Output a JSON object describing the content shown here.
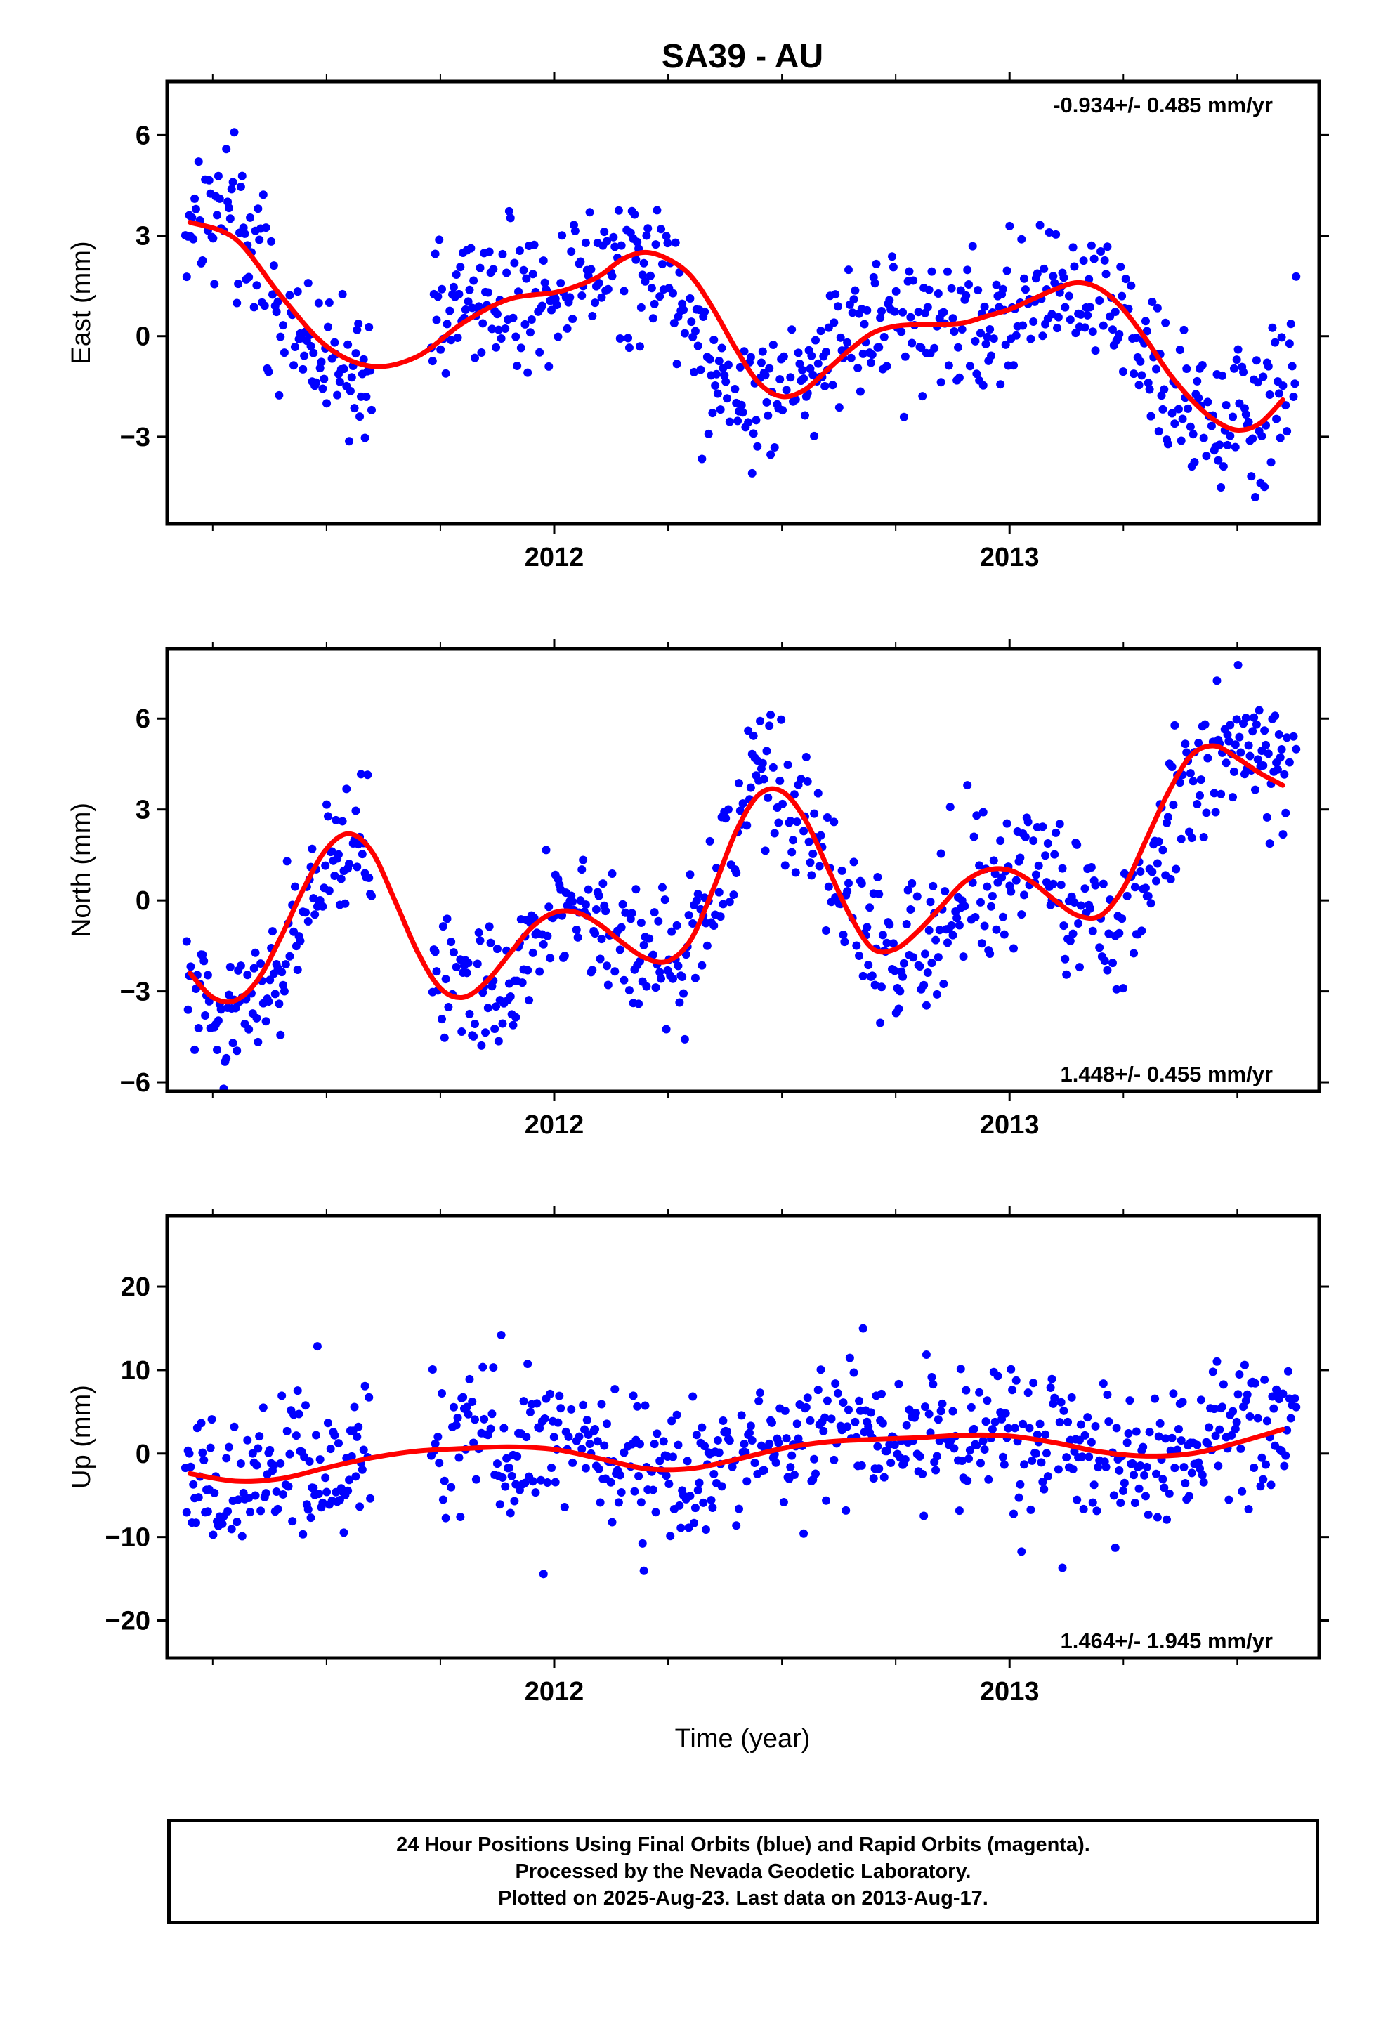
{
  "title": "SA39 - AU",
  "xlabel": "Time (year)",
  "footer": {
    "line1": "24 Hour Positions Using Final Orbits (blue) and Rapid Orbits (magenta).",
    "line2": "Processed by the Nevada Geodetic Laboratory.",
    "line3": "Plotted on 2025-Aug-23. Last data on 2013-Aug-17."
  },
  "colors": {
    "points": "#0000ff",
    "fit": "#ff0000",
    "axis": "#000000"
  },
  "chart_data": [
    {
      "type": "scatter",
      "id": "east",
      "ylabel": "East (mm)",
      "rate": "-0.934+/- 0.485 mm/yr",
      "rate_position": "top-right",
      "xlim": [
        2011.15,
        2013.68
      ],
      "ylim": [
        -5.6,
        7.6
      ],
      "xticks": [
        2012,
        2013
      ],
      "yticks": [
        -3,
        0,
        3,
        6
      ],
      "ytick_labels": [
        "−3",
        "0",
        "3",
        "6"
      ],
      "series": [
        {
          "kind": "daily positions (blue)",
          "x": [
            2011.2,
            2011.25,
            2011.3,
            2011.35,
            2011.4,
            2011.45,
            2011.5,
            2011.55,
            2011.6,
            2011.72,
            2011.78,
            2011.85,
            2011.9,
            2011.95,
            2012.0,
            2012.05,
            2012.1,
            2012.15,
            2012.2,
            2012.25,
            2012.3,
            2012.35,
            2012.4,
            2012.45,
            2012.5,
            2012.55,
            2012.6,
            2012.65,
            2012.7,
            2012.75,
            2012.8,
            2012.85,
            2012.9,
            2012.95,
            2013.0,
            2013.05,
            2013.1,
            2013.15,
            2013.2,
            2013.25,
            2013.3,
            2013.35,
            2013.4,
            2013.45,
            2013.5,
            2013.55,
            2013.6
          ],
          "y": [
            3.4,
            3.9,
            3.5,
            2.2,
            0.8,
            -0.4,
            -0.6,
            -1.5,
            -0.8,
            -0.3,
            1.4,
            1.2,
            1.3,
            1.0,
            1.6,
            2.3,
            1.9,
            2.6,
            2.0,
            1.8,
            0.2,
            -0.9,
            -1.6,
            -1.8,
            -1.5,
            -1.1,
            -0.3,
            0.2,
            0.4,
            0.5,
            0.4,
            0.2,
            0.6,
            0.3,
            0.8,
            0.9,
            1.3,
            1.6,
            1.5,
            0.6,
            -0.6,
            -1.8,
            -2.3,
            -2.7,
            -2.5,
            -2.4,
            -1.6
          ]
        },
        {
          "kind": "model fit (red)",
          "x": [
            2011.2,
            2011.3,
            2011.4,
            2011.5,
            2011.6,
            2011.7,
            2011.8,
            2011.9,
            2012.0,
            2012.05,
            2012.1,
            2012.15,
            2012.2,
            2012.25,
            2012.3,
            2012.35,
            2012.4,
            2012.45,
            2012.5,
            2012.55,
            2012.6,
            2012.65,
            2012.7,
            2012.75,
            2012.8,
            2012.85,
            2012.9,
            2012.95,
            2013.0,
            2013.05,
            2013.1,
            2013.15,
            2013.2,
            2013.25,
            2013.3,
            2013.35,
            2013.4,
            2013.45,
            2013.5,
            2013.55,
            2013.6
          ],
          "y": [
            3.4,
            2.9,
            1.2,
            -0.3,
            -0.9,
            -0.6,
            0.4,
            1.1,
            1.3,
            1.5,
            1.8,
            2.3,
            2.5,
            2.3,
            1.8,
            0.8,
            -0.4,
            -1.4,
            -1.8,
            -1.6,
            -1.0,
            -0.4,
            0.1,
            0.3,
            0.35,
            0.35,
            0.4,
            0.6,
            0.8,
            1.1,
            1.4,
            1.6,
            1.4,
            0.8,
            -0.1,
            -1.1,
            -1.9,
            -2.5,
            -2.8,
            -2.6,
            -1.9
          ]
        }
      ]
    },
    {
      "type": "scatter",
      "id": "north",
      "ylabel": "North (mm)",
      "rate": "1.448+/- 0.455 mm/yr",
      "rate_position": "bottom-right",
      "xlim": [
        2011.15,
        2013.68
      ],
      "ylim": [
        -6.3,
        8.3
      ],
      "xticks": [
        2012,
        2013
      ],
      "yticks": [
        -6,
        -3,
        0,
        3,
        6
      ],
      "ytick_labels": [
        "−6",
        "−3",
        "0",
        "3",
        "6"
      ],
      "series": [
        {
          "kind": "daily positions (blue)",
          "x": [
            2011.2,
            2011.25,
            2011.3,
            2011.35,
            2011.4,
            2011.45,
            2011.5,
            2011.55,
            2011.6,
            2011.72,
            2011.78,
            2011.85,
            2011.9,
            2011.95,
            2012.0,
            2012.05,
            2012.1,
            2012.15,
            2012.2,
            2012.25,
            2012.3,
            2012.35,
            2012.4,
            2012.45,
            2012.5,
            2012.55,
            2012.6,
            2012.65,
            2012.7,
            2012.75,
            2012.8,
            2012.85,
            2012.9,
            2012.95,
            2013.0,
            2013.05,
            2013.1,
            2013.15,
            2013.2,
            2013.25,
            2013.3,
            2013.35,
            2013.4,
            2013.45,
            2013.5,
            2013.55,
            2013.6
          ],
          "y": [
            -2.8,
            -3.4,
            -3.6,
            -3.1,
            -2.0,
            -0.4,
            1.0,
            1.8,
            1.7,
            -1.2,
            -2.6,
            -3.3,
            -2.8,
            -1.4,
            -0.6,
            -0.3,
            -0.8,
            -1.5,
            -2.0,
            -2.3,
            -1.6,
            0.4,
            2.6,
            3.9,
            3.6,
            2.6,
            0.6,
            -0.4,
            -1.4,
            -2.0,
            -1.4,
            -0.8,
            -0.2,
            0.4,
            0.7,
            1.0,
            0.5,
            -0.2,
            -0.6,
            -0.8,
            0.6,
            2.8,
            4.2,
            5.0,
            5.3,
            4.6,
            4.0
          ]
        },
        {
          "kind": "model fit (red)",
          "x": [
            2011.2,
            2011.25,
            2011.3,
            2011.35,
            2011.4,
            2011.45,
            2011.5,
            2011.55,
            2011.6,
            2011.65,
            2011.7,
            2011.75,
            2011.8,
            2011.85,
            2011.9,
            2011.95,
            2012.0,
            2012.05,
            2012.1,
            2012.15,
            2012.2,
            2012.25,
            2012.3,
            2012.35,
            2012.4,
            2012.45,
            2012.5,
            2012.55,
            2012.6,
            2012.65,
            2012.7,
            2012.75,
            2012.8,
            2012.85,
            2012.9,
            2012.95,
            2013.0,
            2013.05,
            2013.1,
            2013.15,
            2013.2,
            2013.25,
            2013.3,
            2013.35,
            2013.4,
            2013.45,
            2013.5,
            2013.55,
            2013.6
          ],
          "y": [
            -2.4,
            -3.2,
            -3.3,
            -2.6,
            -1.2,
            0.4,
            1.7,
            2.2,
            1.6,
            0.0,
            -1.7,
            -2.9,
            -3.2,
            -2.7,
            -1.8,
            -0.9,
            -0.4,
            -0.4,
            -0.8,
            -1.4,
            -1.9,
            -2.0,
            -1.3,
            0.4,
            2.3,
            3.5,
            3.6,
            2.7,
            1.1,
            -0.5,
            -1.6,
            -1.6,
            -1.0,
            -0.2,
            0.6,
            1.0,
            1.0,
            0.6,
            0.0,
            -0.5,
            -0.5,
            0.4,
            2.0,
            3.6,
            4.8,
            5.1,
            4.7,
            4.2,
            3.8
          ]
        }
      ]
    },
    {
      "type": "scatter",
      "id": "up",
      "ylabel": "Up (mm)",
      "rate": "1.464+/- 1.945 mm/yr",
      "rate_position": "bottom-right",
      "xlim": [
        2011.15,
        2013.68
      ],
      "ylim": [
        -24.5,
        28.5
      ],
      "xticks": [
        2012,
        2013
      ],
      "yticks": [
        -20,
        -10,
        0,
        10,
        20
      ],
      "ytick_labels": [
        "−20",
        "−10",
        "0",
        "10",
        "20"
      ],
      "series": [
        {
          "kind": "daily positions (blue)",
          "x": [
            2011.2,
            2011.25,
            2011.3,
            2011.35,
            2011.4,
            2011.45,
            2011.5,
            2011.55,
            2011.6,
            2011.72,
            2011.78,
            2011.85,
            2011.9,
            2011.95,
            2012.0,
            2012.05,
            2012.1,
            2012.15,
            2012.2,
            2012.25,
            2012.3,
            2012.35,
            2012.4,
            2012.45,
            2012.5,
            2012.55,
            2012.6,
            2012.65,
            2012.7,
            2012.75,
            2012.8,
            2012.85,
            2012.9,
            2012.95,
            2013.0,
            2013.05,
            2013.1,
            2013.15,
            2013.2,
            2013.25,
            2013.3,
            2013.35,
            2013.4,
            2013.45,
            2013.5,
            2013.55,
            2013.6
          ],
          "y": [
            -4.0,
            -3.0,
            -4.0,
            -2.0,
            -3.0,
            -2.0,
            -3.0,
            -1.0,
            1.0,
            2.0,
            2.0,
            1.0,
            0.0,
            1.0,
            0.0,
            2.0,
            1.0,
            0.0,
            -2.0,
            -1.0,
            -2.0,
            -1.0,
            0.0,
            1.0,
            0.0,
            1.0,
            2.0,
            2.0,
            1.0,
            2.0,
            2.0,
            3.0,
            2.0,
            3.0,
            2.0,
            1.0,
            2.0,
            1.0,
            0.0,
            -1.0,
            -1.0,
            0.0,
            0.0,
            1.0,
            2.0,
            2.0,
            3.0
          ]
        },
        {
          "kind": "model fit (red)",
          "x": [
            2011.2,
            2011.3,
            2011.4,
            2011.5,
            2011.6,
            2011.7,
            2011.8,
            2011.9,
            2012.0,
            2012.1,
            2012.2,
            2012.3,
            2012.4,
            2012.5,
            2012.6,
            2012.7,
            2012.8,
            2012.9,
            2013.0,
            2013.1,
            2013.2,
            2013.3,
            2013.4,
            2013.5,
            2013.6
          ],
          "y": [
            -2.4,
            -3.3,
            -3.0,
            -1.7,
            -0.5,
            0.3,
            0.6,
            0.8,
            0.5,
            -0.6,
            -1.8,
            -1.8,
            -0.7,
            0.6,
            1.4,
            1.7,
            1.9,
            2.2,
            2.1,
            1.3,
            0.2,
            -0.3,
            0.0,
            1.3,
            2.9
          ]
        }
      ]
    }
  ]
}
